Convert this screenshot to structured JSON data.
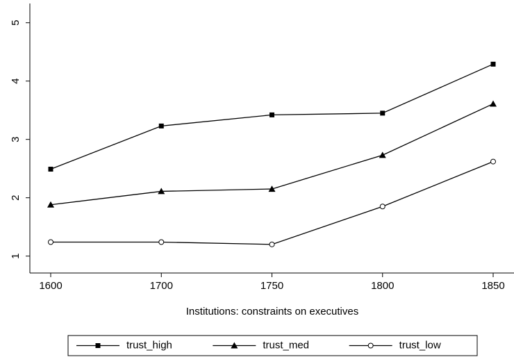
{
  "chart_data": {
    "type": "line",
    "x_label": "Institutions: constraints on executives",
    "categories": [
      "1600",
      "1700",
      "1750",
      "1800",
      "1850"
    ],
    "series": [
      {
        "name": "trust_high",
        "color": "#000000",
        "marker": "square",
        "values": [
          2.49,
          3.23,
          3.42,
          3.45,
          4.29
        ]
      },
      {
        "name": "trust_med",
        "color": "#000000",
        "marker": "triangle",
        "values": [
          1.88,
          2.11,
          2.15,
          2.73,
          3.61
        ]
      },
      {
        "name": "trust_low",
        "color": "#000000",
        "marker": "circle-open",
        "values": [
          1.24,
          1.24,
          1.2,
          1.85,
          2.62
        ]
      }
    ],
    "ylim": [
      0.71,
      5.33
    ],
    "yticks": [
      1,
      2,
      3,
      4,
      5
    ],
    "grid": false,
    "legend": "bottom"
  }
}
